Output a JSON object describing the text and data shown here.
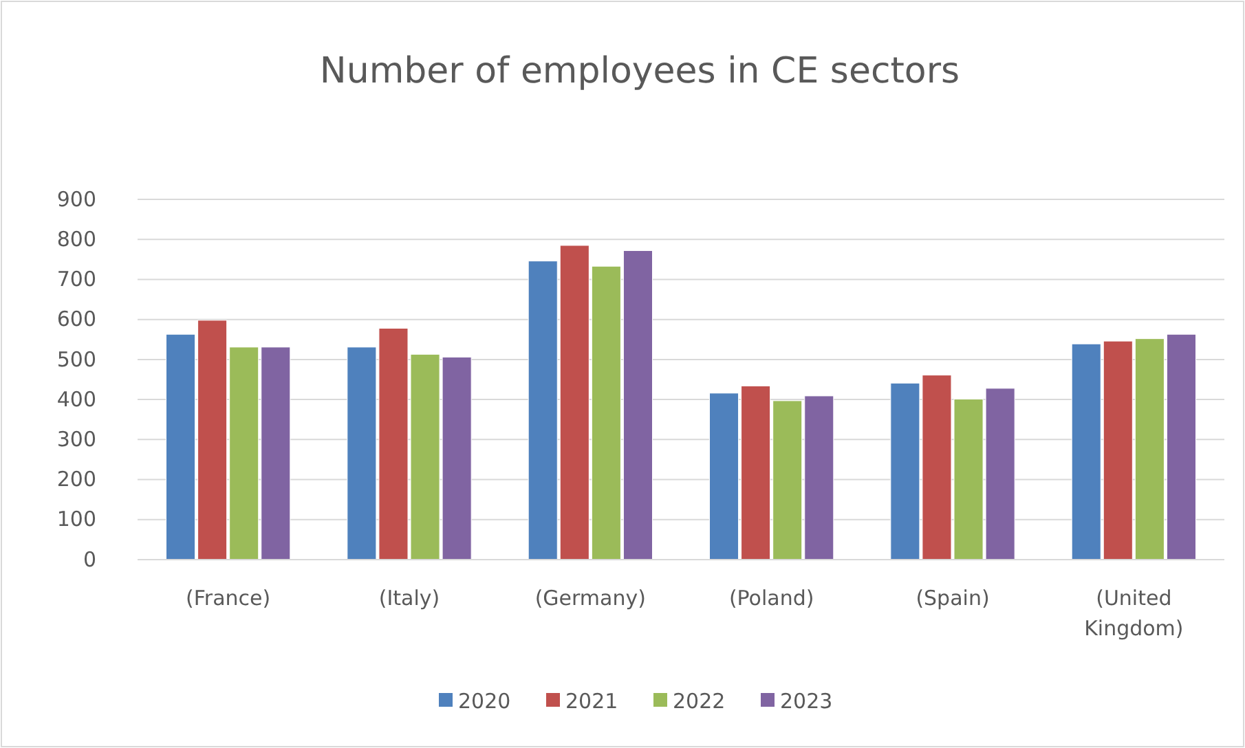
{
  "chart_data": {
    "type": "bar",
    "title": "Number of employees in CE sectors",
    "categories": [
      "(France)",
      "(Italy)",
      "(Germany)",
      "(Poland)",
      "(Spain)",
      "(United Kingdom)"
    ],
    "series": [
      {
        "name": "2020",
        "color": "#4f81bd",
        "values": [
          563,
          531,
          746,
          416,
          441,
          539
        ]
      },
      {
        "name": "2021",
        "color": "#c0504d",
        "values": [
          598,
          578,
          785,
          434,
          461,
          546
        ]
      },
      {
        "name": "2022",
        "color": "#9bbb59",
        "values": [
          531,
          513,
          733,
          397,
          401,
          552
        ]
      },
      {
        "name": "2023",
        "color": "#8064a2",
        "values": [
          531,
          506,
          772,
          409,
          428,
          563
        ]
      }
    ],
    "ylim": [
      0,
      900
    ],
    "yticks": [
      0,
      100,
      200,
      300,
      400,
      500,
      600,
      700,
      800,
      900
    ],
    "grid": "y",
    "legend": "bottom"
  }
}
